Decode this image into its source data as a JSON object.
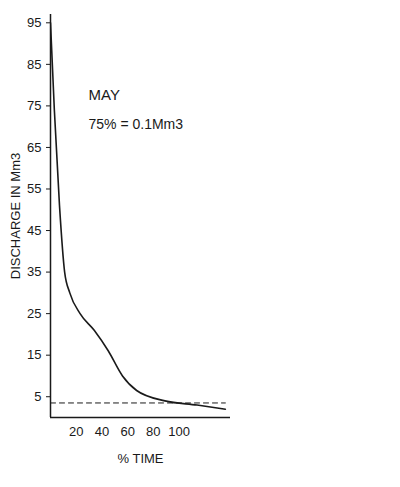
{
  "chart_data": {
    "type": "line",
    "x_label": "% TIME",
    "y_label": "DISCHARGE IN Mm3",
    "annotations": [
      "MAY",
      "75% = 0.1Mm3"
    ],
    "x": [
      0,
      3,
      7,
      11,
      15,
      23,
      34,
      45,
      56,
      67,
      89,
      114,
      136
    ],
    "values": [
      95,
      74,
      51,
      35,
      30,
      25,
      21,
      16,
      10,
      6.5,
      4,
      3,
      2
    ],
    "dashed_line": 3.5,
    "color": "#1a1a1a",
    "line_style": "solid",
    "xlim": [
      0,
      140
    ],
    "xticks": [
      20,
      40,
      60,
      80,
      100
    ],
    "ylim": [
      0,
      97
    ],
    "yticks": [
      5,
      15,
      25,
      35,
      45,
      55,
      65,
      75,
      85,
      95
    ],
    "grid": false
  }
}
